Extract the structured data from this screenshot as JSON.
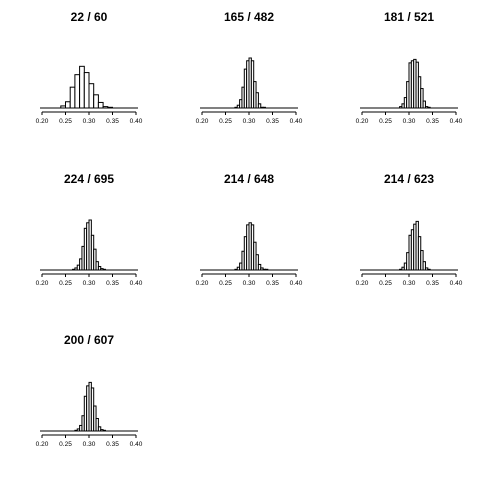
{
  "chart_data": [
    {
      "type": "histogram",
      "title": "22 / 60",
      "xlim": [
        0.2,
        0.4
      ],
      "xticks": [
        "0.20",
        "0.25",
        "0.30",
        "0.35",
        "0.40"
      ],
      "bin_width": 0.01,
      "bin_starts": [
        0.24,
        0.25,
        0.26,
        0.27,
        0.28,
        0.29,
        0.3,
        0.31,
        0.32,
        0.33,
        0.34
      ],
      "values": [
        3,
        9,
        30,
        48,
        60,
        51,
        35,
        19,
        8,
        2,
        1
      ]
    },
    {
      "type": "histogram",
      "title": "165 / 482",
      "xlim": [
        0.2,
        0.4
      ],
      "xticks": [
        "0.20",
        "0.25",
        "0.30",
        "0.35",
        "0.40"
      ],
      "bin_width": 0.005,
      "bin_starts": [
        0.27,
        0.275,
        0.28,
        0.285,
        0.29,
        0.295,
        0.3,
        0.305,
        0.31,
        0.315,
        0.32,
        0.325,
        0.33,
        0.335
      ],
      "values": [
        1,
        4,
        12,
        30,
        56,
        68,
        72,
        68,
        38,
        22,
        6,
        1,
        1,
        0
      ]
    },
    {
      "type": "histogram",
      "title": "181 / 521",
      "xlim": [
        0.2,
        0.4
      ],
      "xticks": [
        "0.20",
        "0.25",
        "0.30",
        "0.35",
        "0.40"
      ],
      "bin_width": 0.005,
      "bin_starts": [
        0.28,
        0.285,
        0.29,
        0.295,
        0.3,
        0.305,
        0.31,
        0.315,
        0.32,
        0.325,
        0.33,
        0.335,
        0.34
      ],
      "values": [
        2,
        6,
        15,
        38,
        65,
        68,
        70,
        66,
        45,
        28,
        10,
        2,
        1
      ]
    },
    {
      "type": "histogram",
      "title": "224 / 695",
      "xlim": [
        0.2,
        0.4
      ],
      "xticks": [
        "0.20",
        "0.25",
        "0.30",
        "0.35",
        "0.40"
      ],
      "bin_width": 0.005,
      "bin_starts": [
        0.265,
        0.27,
        0.275,
        0.28,
        0.285,
        0.29,
        0.295,
        0.3,
        0.305,
        0.31,
        0.315,
        0.32,
        0.325,
        0.33
      ],
      "values": [
        1,
        3,
        7,
        16,
        34,
        60,
        68,
        72,
        50,
        30,
        12,
        5,
        2,
        1
      ]
    },
    {
      "type": "histogram",
      "title": "214 / 648",
      "xlim": [
        0.2,
        0.4
      ],
      "xticks": [
        "0.20",
        "0.25",
        "0.30",
        "0.35",
        "0.40"
      ],
      "bin_width": 0.005,
      "bin_starts": [
        0.27,
        0.275,
        0.28,
        0.285,
        0.29,
        0.295,
        0.3,
        0.305,
        0.31,
        0.315,
        0.32,
        0.325,
        0.33,
        0.335,
        0.34
      ],
      "values": [
        1,
        4,
        10,
        27,
        48,
        65,
        68,
        65,
        40,
        22,
        8,
        3,
        1,
        1,
        0
      ]
    },
    {
      "type": "histogram",
      "title": "214 / 623",
      "xlim": [
        0.2,
        0.4
      ],
      "xticks": [
        "0.20",
        "0.25",
        "0.30",
        "0.35",
        "0.40"
      ],
      "bin_width": 0.005,
      "bin_starts": [
        0.28,
        0.285,
        0.29,
        0.295,
        0.3,
        0.305,
        0.31,
        0.315,
        0.32,
        0.325,
        0.33,
        0.335,
        0.34
      ],
      "values": [
        1,
        4,
        10,
        25,
        50,
        58,
        66,
        70,
        48,
        28,
        12,
        3,
        1
      ]
    },
    {
      "type": "histogram",
      "title": "200 / 607",
      "xlim": [
        0.2,
        0.4
      ],
      "xticks": [
        "0.20",
        "0.25",
        "0.30",
        "0.35",
        "0.40"
      ],
      "bin_width": 0.005,
      "bin_starts": [
        0.27,
        0.275,
        0.28,
        0.285,
        0.29,
        0.295,
        0.3,
        0.305,
        0.31,
        0.315,
        0.32,
        0.325,
        0.33,
        0.335
      ],
      "values": [
        1,
        3,
        8,
        22,
        50,
        65,
        70,
        62,
        36,
        18,
        6,
        2,
        1,
        0
      ]
    }
  ]
}
